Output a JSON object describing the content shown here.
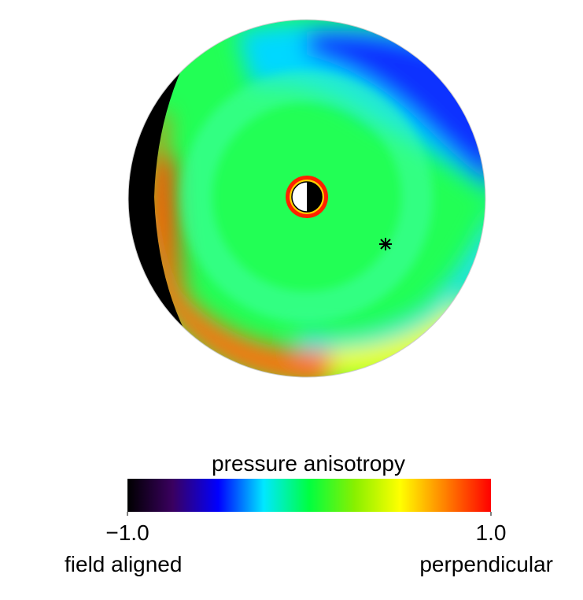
{
  "chart_data": {
    "type": "polar-map",
    "colorbar": {
      "title": "pressure anisotropy",
      "lim": [
        -1,
        1
      ],
      "ticks": [
        {
          "value": -1,
          "label": "−1.0"
        },
        {
          "value": 1,
          "label": "1.0"
        }
      ],
      "low_label": "field aligned",
      "high_label": "perpendicular",
      "colors": [
        "#000000",
        "#3a0060",
        "#0000ff",
        "#00e8ff",
        "#00ff40",
        "#88f000",
        "#ffff00",
        "#ff8000",
        "#ff0000"
      ]
    }
  }
}
